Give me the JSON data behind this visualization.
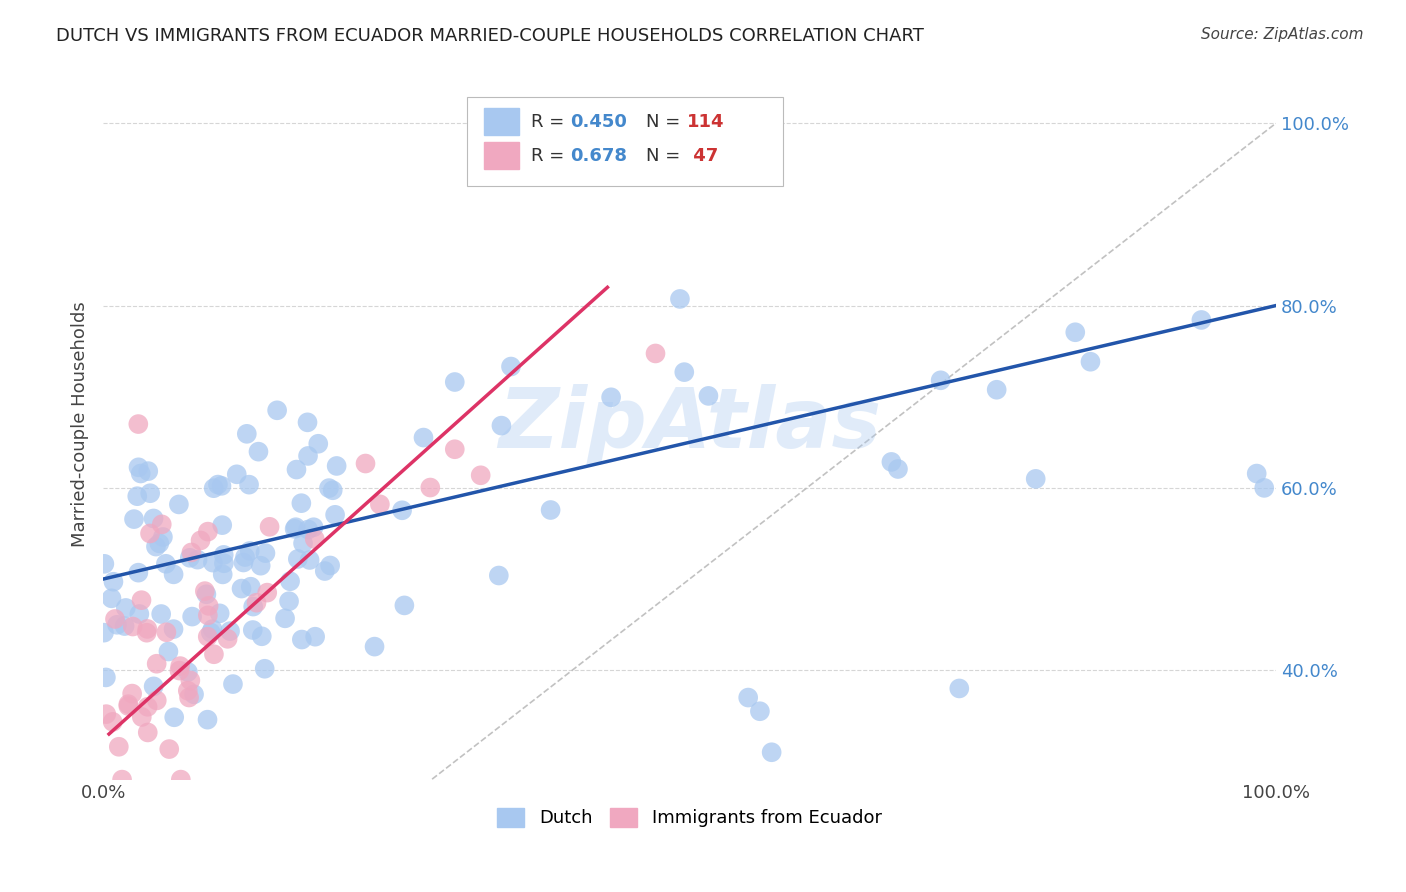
{
  "title": "DUTCH VS IMMIGRANTS FROM ECUADOR MARRIED-COUPLE HOUSEHOLDS CORRELATION CHART",
  "source": "Source: ZipAtlas.com",
  "ylabel": "Married-couple Households",
  "xlim": [
    0.0,
    1.0
  ],
  "ylim": [
    0.28,
    1.06
  ],
  "dutch_color": "#a8c8f0",
  "ecuador_color": "#f0a8c0",
  "dutch_line_color": "#2255aa",
  "ecuador_line_color": "#dd3366",
  "ref_line_color": "#bbbbbb",
  "text_color_r": "#4488cc",
  "text_color_n": "#cc3333",
  "watermark": "ZipAtlas",
  "background_color": "#ffffff",
  "grid_color": "#cccccc",
  "legend_r_dutch": "0.450",
  "legend_n_dutch": "114",
  "legend_r_ecuador": "0.678",
  "legend_n_ecuador": " 47",
  "dutch_line_x0": 0.0,
  "dutch_line_y0": 0.5,
  "dutch_line_x1": 1.0,
  "dutch_line_y1": 0.8,
  "ecuador_line_x0": 0.005,
  "ecuador_line_y0": 0.33,
  "ecuador_line_x1": 0.43,
  "ecuador_line_y1": 0.82
}
